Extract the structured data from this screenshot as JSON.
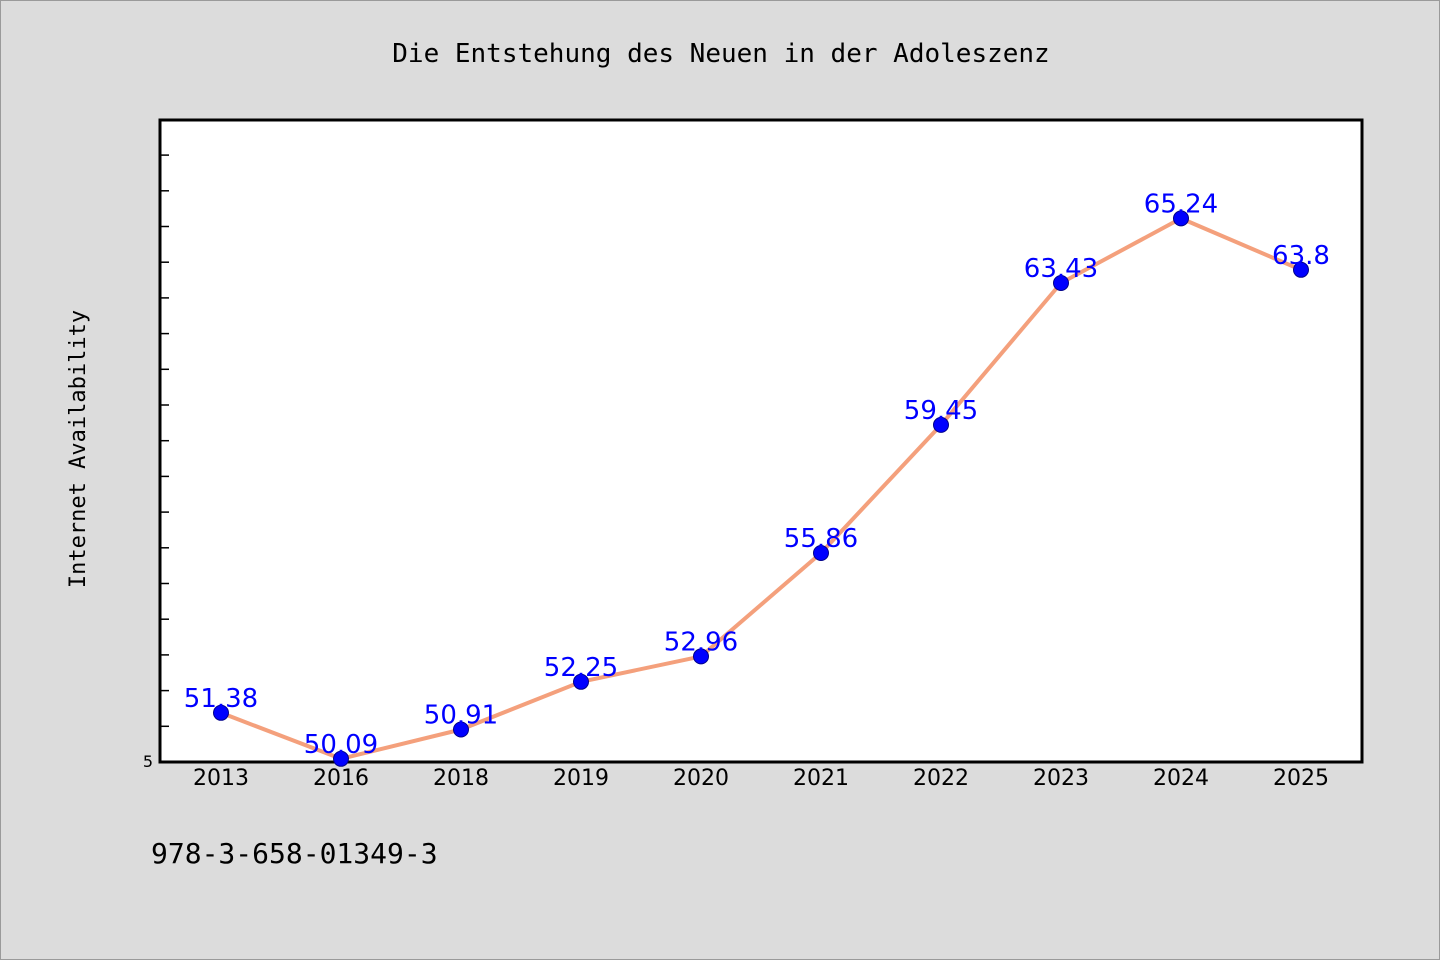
{
  "chart_data": {
    "type": "line",
    "title": "Die Entstehung des Neuen in der Adoleszenz",
    "xlabel": "",
    "ylabel": "Internet Availability",
    "categories": [
      "2013",
      "2016",
      "2018",
      "2019",
      "2020",
      "2021",
      "2022",
      "2023",
      "2024",
      "2025"
    ],
    "values": [
      51.38,
      50.09,
      50.91,
      52.25,
      52.96,
      55.86,
      59.45,
      63.43,
      65.24,
      63.8
    ],
    "data_labels": [
      "51.38",
      "50.09",
      "50.91",
      "52.25",
      "52.96",
      "55.86",
      "59.45",
      "63.43",
      "65.24",
      "63.8"
    ],
    "y_tick_labels": [
      "5"
    ],
    "ylim": [
      50,
      68
    ],
    "grid": false,
    "legend": false,
    "line_color": "#f4a07c",
    "marker_color": "#0000ff",
    "label_color": "#0000ff",
    "background_color": "#dcdcdc",
    "plot_background": "#ffffff"
  },
  "footer": {
    "isbn": "978-3-658-01349-3"
  }
}
